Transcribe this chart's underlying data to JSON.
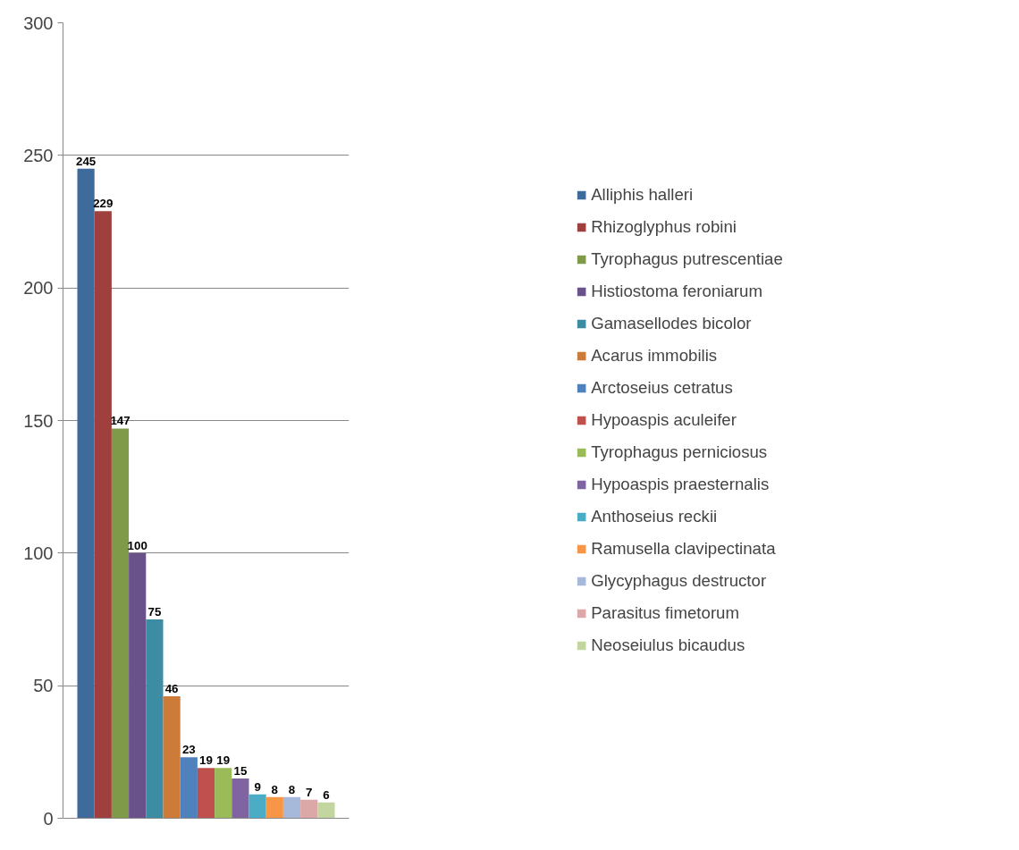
{
  "chart_data": {
    "type": "bar",
    "categories": [
      null
    ],
    "series": [
      {
        "name": "Alliphis halleri",
        "color": "#3f6a9c",
        "values": [
          245
        ]
      },
      {
        "name": "Rhizoglyphus robini",
        "color": "#a0403e",
        "values": [
          229
        ]
      },
      {
        "name": "Tyrophagus putrescentiae",
        "color": "#7f9a48",
        "values": [
          147
        ]
      },
      {
        "name": "Histiostoma feroniarum",
        "color": "#69518a",
        "values": [
          100
        ]
      },
      {
        "name": "Gamasellodes bicolor",
        "color": "#3c8da3",
        "values": [
          75
        ]
      },
      {
        "name": "Acarus immobilis",
        "color": "#cc7b38",
        "values": [
          46
        ]
      },
      {
        "name": "Arctoseius cetratus",
        "color": "#4f81bd",
        "values": [
          23
        ]
      },
      {
        "name": "Hypoaspis aculeifer",
        "color": "#c0504d",
        "values": [
          19
        ]
      },
      {
        "name": "Tyrophagus perniciosus",
        "color": "#9bbb59",
        "values": [
          19
        ]
      },
      {
        "name": "Hypoaspis praesternalis",
        "color": "#8064a2",
        "values": [
          15
        ]
      },
      {
        "name": "Anthoseius reckii",
        "color": "#4bacc6",
        "values": [
          9
        ]
      },
      {
        "name": "Ramusella clavipectinata",
        "color": "#f79646",
        "values": [
          8
        ]
      },
      {
        "name": "Glycyphagus destructor",
        "color": "#a7b9db",
        "values": [
          8
        ]
      },
      {
        "name": "Parasitus fimetorum",
        "color": "#dba8a7",
        "values": [
          7
        ]
      },
      {
        "name": "Neoseiulus bicaudus",
        "color": "#c4d6a0",
        "values": [
          6
        ]
      }
    ],
    "ylim": [
      0,
      300
    ],
    "yticks": [
      0,
      50,
      100,
      150,
      200,
      250,
      300
    ],
    "grid": "y",
    "legend": "right",
    "data_labels": true,
    "tick_labels": "y"
  }
}
